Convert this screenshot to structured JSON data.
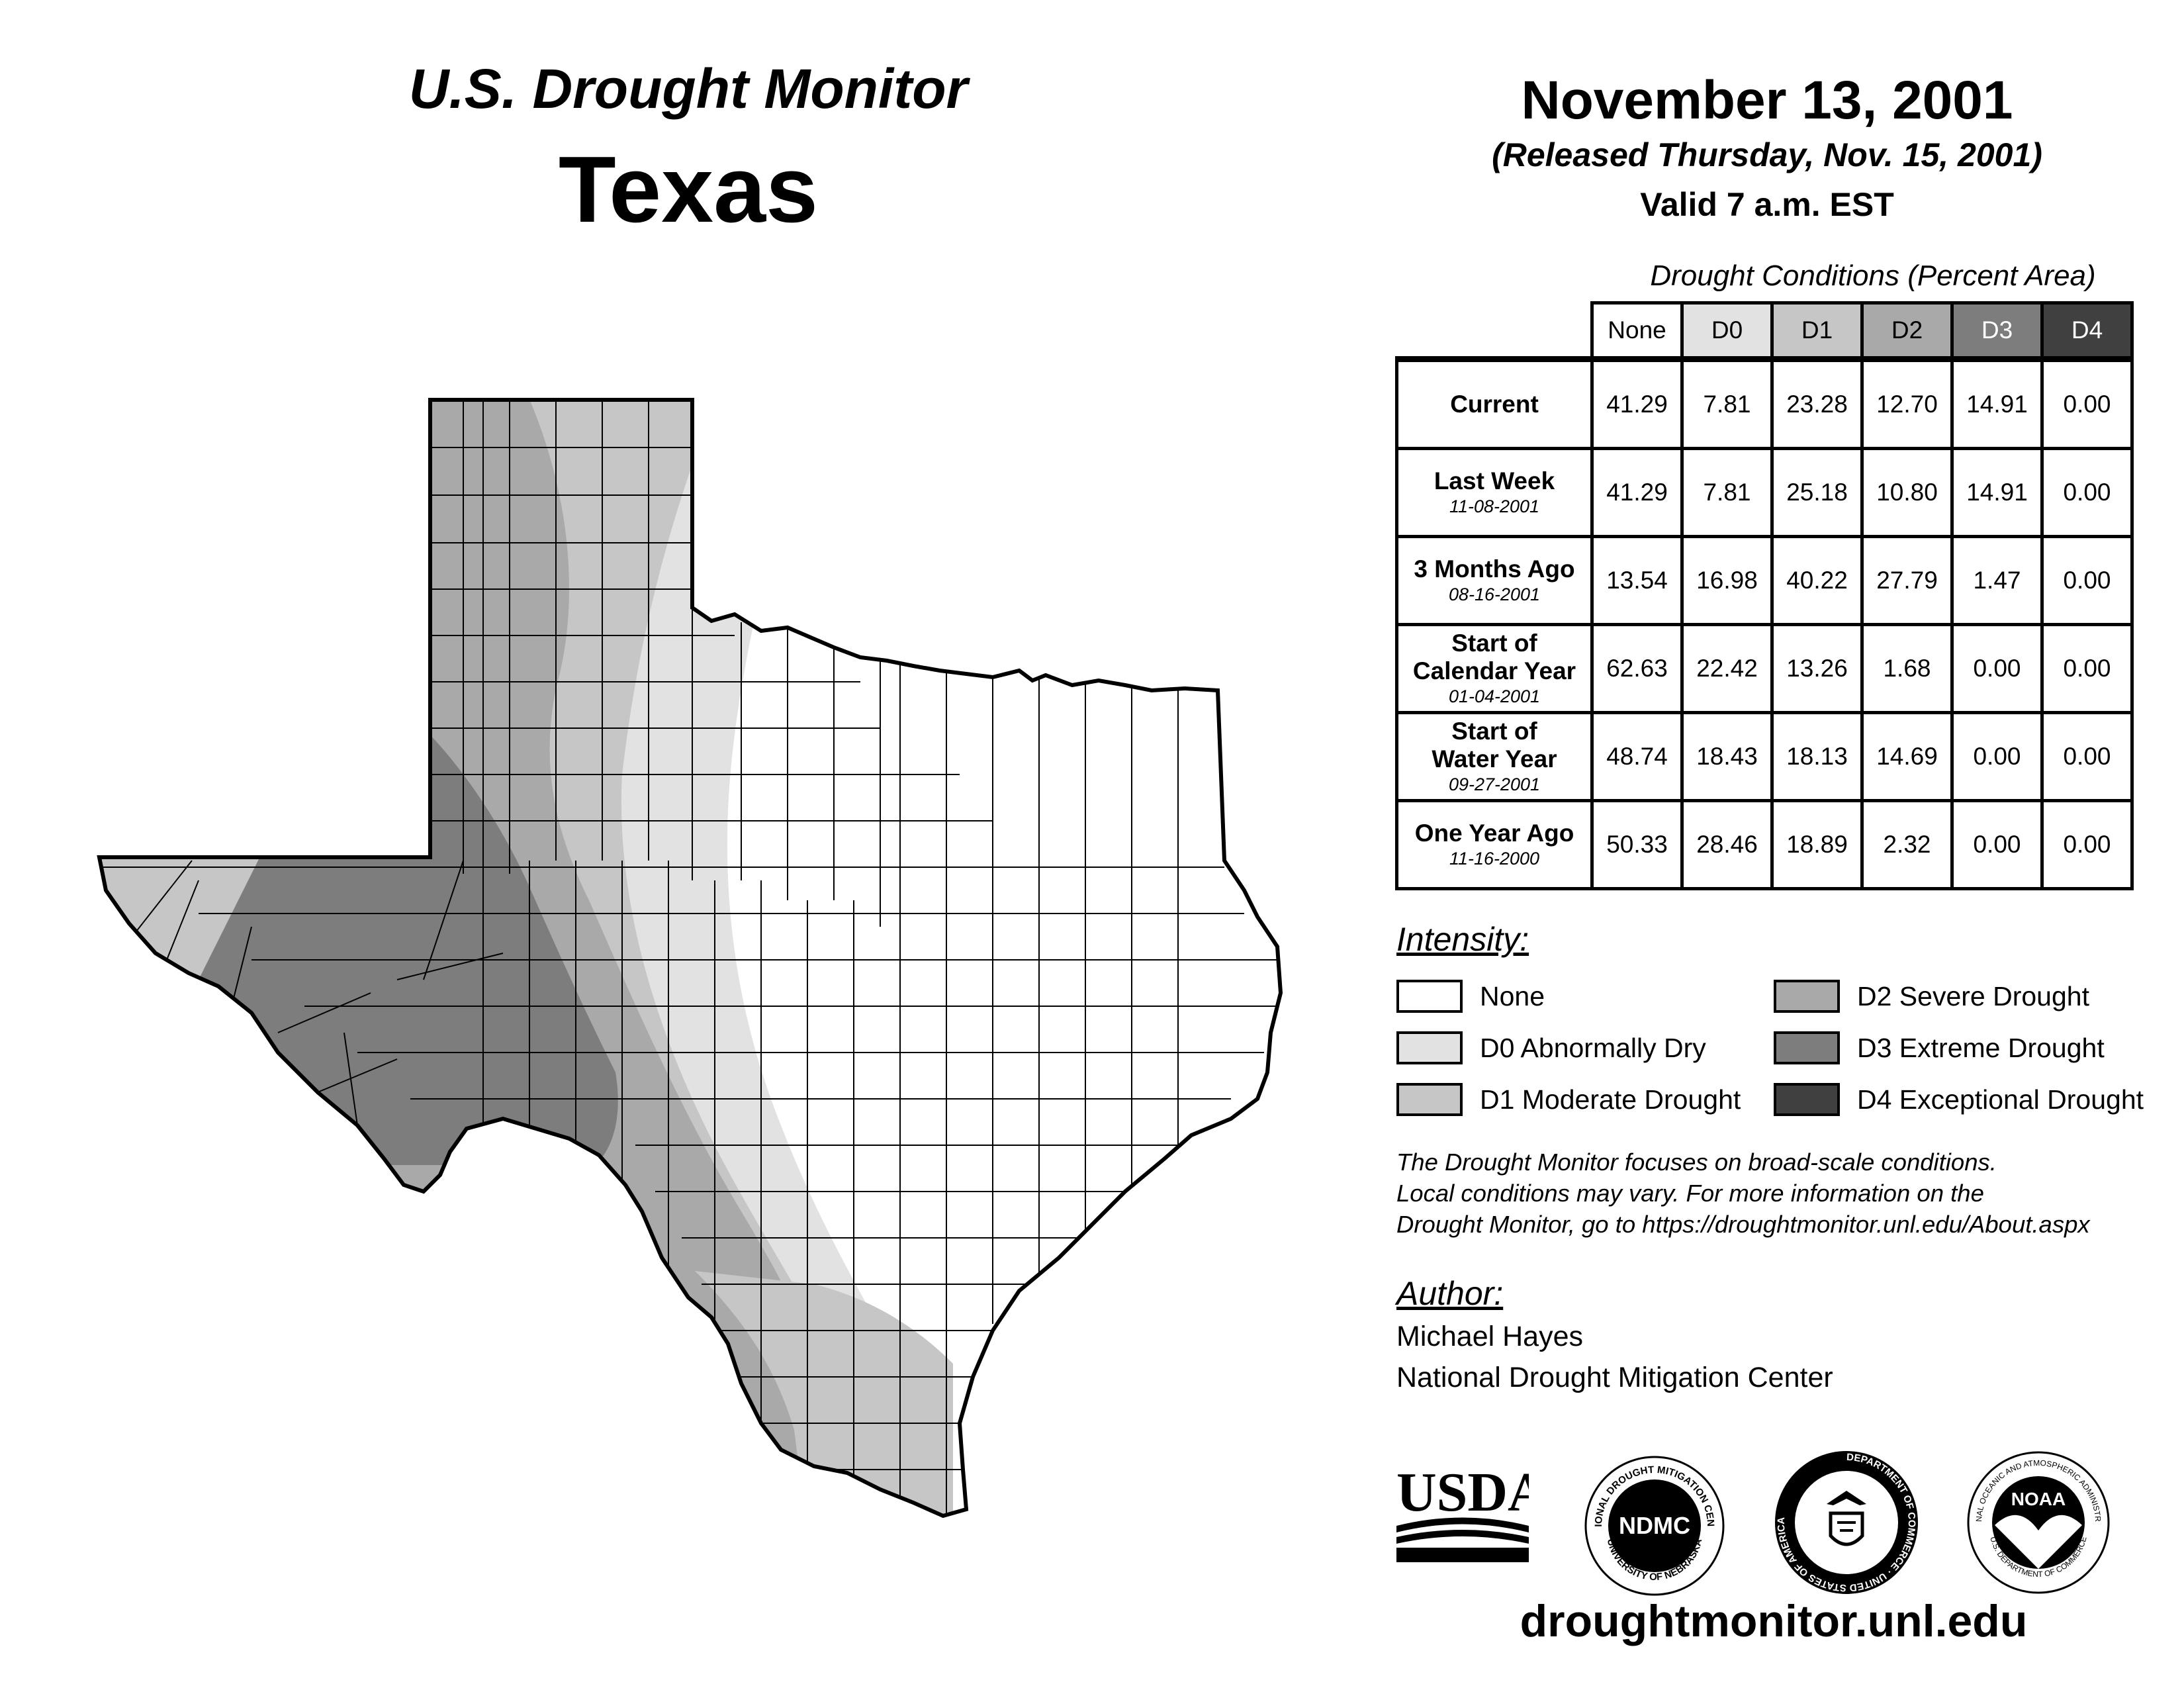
{
  "header": {
    "title": "U.S. Drought Monitor",
    "state": "Texas",
    "date": "November 13, 2001",
    "released": "(Released Thursday, Nov. 15, 2001)",
    "valid": "Valid 7 a.m. EST"
  },
  "table": {
    "caption": "Drought Conditions (Percent Area)",
    "columns": [
      "None",
      "D0",
      "D1",
      "D2",
      "D3",
      "D4"
    ],
    "rows": [
      {
        "label": "Current",
        "label2": "",
        "date": "",
        "values": [
          "41.29",
          "7.81",
          "23.28",
          "12.70",
          "14.91",
          "0.00"
        ]
      },
      {
        "label": "Last Week",
        "label2": "",
        "date": "11-08-2001",
        "values": [
          "41.29",
          "7.81",
          "25.18",
          "10.80",
          "14.91",
          "0.00"
        ]
      },
      {
        "label": "3 Months Ago",
        "label2": "",
        "date": "08-16-2001",
        "values": [
          "13.54",
          "16.98",
          "40.22",
          "27.79",
          "1.47",
          "0.00"
        ]
      },
      {
        "label": "Start of",
        "label2": "Calendar Year",
        "date": "01-04-2001",
        "values": [
          "62.63",
          "22.42",
          "13.26",
          "1.68",
          "0.00",
          "0.00"
        ]
      },
      {
        "label": "Start of",
        "label2": "Water Year",
        "date": "09-27-2001",
        "values": [
          "48.74",
          "18.43",
          "18.13",
          "14.69",
          "0.00",
          "0.00"
        ]
      },
      {
        "label": "One Year Ago",
        "label2": "",
        "date": "11-16-2000",
        "values": [
          "50.33",
          "28.46",
          "18.89",
          "2.32",
          "0.00",
          "0.00"
        ]
      }
    ]
  },
  "legend": {
    "title": "Intensity:",
    "items": [
      {
        "label": "None",
        "color": "#ffffff"
      },
      {
        "label": "D0 Abnormally Dry",
        "color": "#e2e2e2"
      },
      {
        "label": "D1 Moderate Drought",
        "color": "#c6c6c6"
      },
      {
        "label": "D2 Severe Drought",
        "color": "#a9a9a9"
      },
      {
        "label": "D3 Extreme Drought",
        "color": "#7d7d7d"
      },
      {
        "label": "D4 Exceptional Drought",
        "color": "#404040"
      }
    ]
  },
  "note": {
    "line1": "The Drought Monitor focuses on broad-scale conditions.",
    "line2": "Local conditions may vary. For more information on the",
    "line3": "Drought Monitor, go to https://droughtmonitor.unl.edu/About.aspx"
  },
  "author": {
    "heading": "Author:",
    "name": "Michael Hayes",
    "org": "National Drought Mitigation Center"
  },
  "logos": {
    "usda": "USDA",
    "ndmc": "NDMC",
    "ndmc_ring_top": "NATIONAL DROUGHT MITIGATION CENTER",
    "ndmc_ring_bottom": "UNIVERSITY OF NEBRASKA",
    "doc_ring": "DEPARTMENT OF COMMERCE · UNITED STATES OF AMERICA",
    "noaa": "NOAA",
    "noaa_ring_top": "NATIONAL OCEANIC AND ATMOSPHERIC ADMINISTRATION",
    "noaa_ring_bottom": "U.S. DEPARTMENT OF COMMERCE"
  },
  "website": "droughtmonitor.unl.edu"
}
